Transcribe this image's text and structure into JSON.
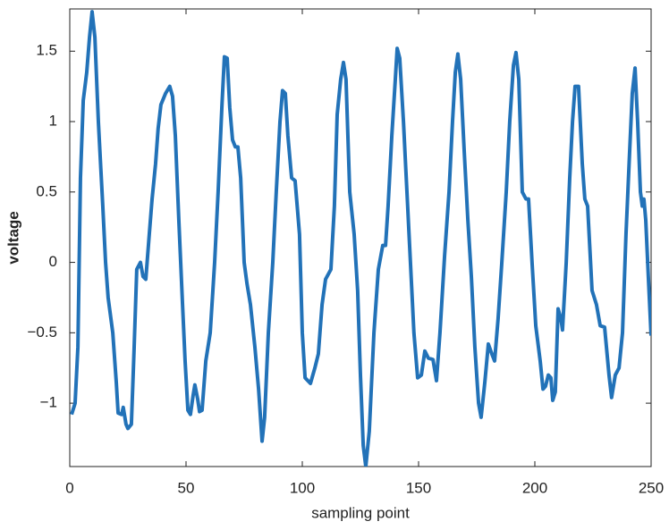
{
  "chart_data": {
    "type": "line",
    "x_label": "sampling point",
    "y_label": "voltage",
    "x": [
      0.8,
      2.3,
      3.5,
      4.6,
      5.8,
      7.3,
      8.5,
      9.6,
      10.8,
      12.3,
      14.2,
      15.4,
      16.5,
      18.5,
      20,
      20.8,
      22.3,
      23,
      24.2,
      25,
      26.5,
      27.7,
      28.8,
      30.4,
      31.5,
      32.7,
      34.2,
      35.4,
      36.9,
      38,
      39.2,
      41.2,
      43,
      44.2,
      45.4,
      46.9,
      48.5,
      49.6,
      50.8,
      51.9,
      53,
      53.8,
      55,
      55.8,
      56.9,
      58.5,
      60.4,
      62.3,
      63.8,
      65.4,
      66.5,
      67.7,
      68.8,
      70,
      71.2,
      72.3,
      73.5,
      75,
      76.2,
      77.7,
      79.6,
      81.2,
      82.7,
      83.8,
      85.4,
      87.3,
      88.8,
      90.4,
      91.5,
      92.7,
      93.8,
      95.4,
      96.9,
      98.8,
      100,
      101.2,
      103.5,
      105.4,
      106.9,
      108.5,
      110,
      112.3,
      113.8,
      115,
      116.5,
      117.7,
      118.8,
      120.4,
      122.3,
      123.8,
      125,
      126.2,
      127.3,
      128.8,
      130.8,
      132.7,
      134.6,
      135.8,
      136.9,
      138.5,
      140,
      140.8,
      141.9,
      143.5,
      145,
      146.5,
      148,
      149.6,
      151.2,
      152.7,
      154.2,
      156.2,
      157.7,
      159.2,
      161.2,
      163.1,
      164.6,
      165.8,
      166.9,
      168.1,
      169.6,
      171.2,
      172.7,
      174.2,
      175.8,
      176.9,
      178.5,
      180,
      181.5,
      182.7,
      184.2,
      185.8,
      187.7,
      189.2,
      190.8,
      191.9,
      193.1,
      194.6,
      196.2,
      197.3,
      198.8,
      200.4,
      202.3,
      203.5,
      204.6,
      205.8,
      206.9,
      207.7,
      208.8,
      210,
      211.2,
      211.9,
      213.5,
      215,
      216.2,
      217.3,
      218.8,
      220.4,
      221.5,
      222.7,
      224.6,
      226.5,
      228.1,
      230,
      231.9,
      233,
      234.6,
      236.2,
      237.7,
      239.2,
      240.8,
      241.9,
      243.1,
      244.2,
      245.4,
      246.2,
      246.9,
      247.7,
      248.8,
      250
    ],
    "series": [
      {
        "color": "#2272b8",
        "values": [
          -1.08,
          -1.0,
          -0.6,
          0.6,
          1.15,
          1.35,
          1.6,
          1.78,
          1.6,
          1.0,
          0.4,
          0,
          -0.25,
          -0.5,
          -0.85,
          -1.07,
          -1.08,
          -1.03,
          -1.15,
          -1.18,
          -1.15,
          -0.6,
          -0.05,
          0.0,
          -0.1,
          -0.12,
          0.2,
          0.45,
          0.7,
          0.95,
          1.12,
          1.2,
          1.25,
          1.18,
          0.9,
          0.3,
          -0.3,
          -0.7,
          -1.05,
          -1.08,
          -0.95,
          -0.87,
          -0.97,
          -1.06,
          -1.05,
          -0.7,
          -0.5,
          0.0,
          0.5,
          1.1,
          1.46,
          1.45,
          1.1,
          0.87,
          0.82,
          0.82,
          0.6,
          0.0,
          -0.15,
          -0.3,
          -0.6,
          -0.9,
          -1.27,
          -1.1,
          -0.5,
          0.0,
          0.5,
          1.0,
          1.22,
          1.2,
          0.9,
          0.6,
          0.58,
          0.2,
          -0.5,
          -0.82,
          -0.86,
          -0.75,
          -0.65,
          -0.3,
          -0.12,
          -0.05,
          0.4,
          1.05,
          1.3,
          1.42,
          1.3,
          0.5,
          0.2,
          -0.2,
          -0.8,
          -1.3,
          -1.45,
          -1.2,
          -0.5,
          -0.05,
          0.12,
          0.12,
          0.4,
          0.9,
          1.3,
          1.52,
          1.45,
          1.0,
          0.5,
          0.0,
          -0.5,
          -0.82,
          -0.8,
          -0.63,
          -0.68,
          -0.69,
          -0.84,
          -0.5,
          0.05,
          0.5,
          1.0,
          1.35,
          1.48,
          1.3,
          0.8,
          0.3,
          -0.1,
          -0.6,
          -1.0,
          -1.1,
          -0.85,
          -0.58,
          -0.65,
          -0.7,
          -0.4,
          0.0,
          0.5,
          1.0,
          1.4,
          1.49,
          1.3,
          0.5,
          0.45,
          0.45,
          0.0,
          -0.45,
          -0.7,
          -0.9,
          -0.88,
          -0.8,
          -0.82,
          -0.98,
          -0.92,
          -0.33,
          -0.4,
          -0.48,
          0.0,
          0.6,
          1.0,
          1.25,
          1.25,
          0.7,
          0.45,
          0.4,
          -0.2,
          -0.3,
          -0.45,
          -0.46,
          -0.8,
          -0.96,
          -0.8,
          -0.75,
          -0.5,
          0.2,
          0.8,
          1.2,
          1.38,
          1.0,
          0.5,
          0.4,
          0.45,
          0.3,
          -0.1,
          -0.52
        ]
      }
    ],
    "xlim": [
      0,
      250
    ],
    "ylim": [
      -1.45,
      1.8
    ],
    "xticks": [
      0,
      50,
      100,
      150,
      200,
      250
    ],
    "yticks": [
      {
        "value": -1,
        "label": "−1"
      },
      {
        "value": -0.5,
        "label": "−0.5"
      },
      0,
      0.5,
      1,
      1.5
    ]
  }
}
